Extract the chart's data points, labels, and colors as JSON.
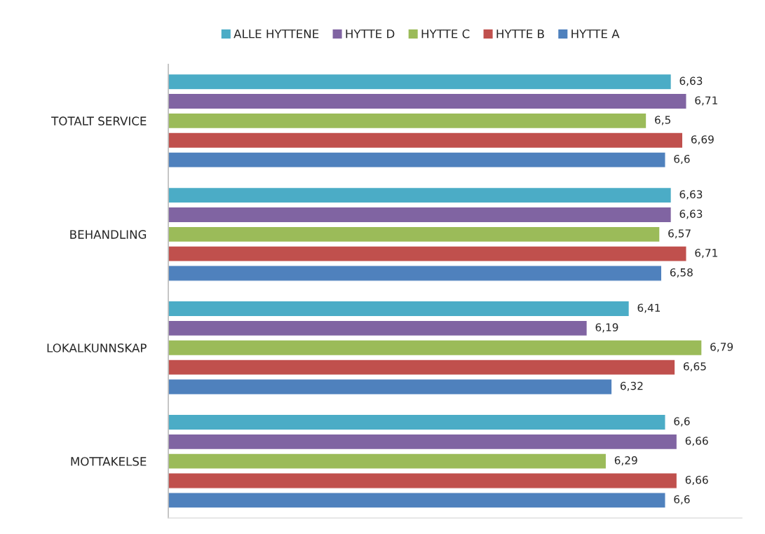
{
  "chart_data": {
    "type": "bar",
    "orientation": "horizontal",
    "categories": [
      "TOTALT SERVICE",
      "BEHANDLING",
      "LOKALKUNNSKAP",
      "MOTTAKELSE"
    ],
    "series": [
      {
        "name": "ALLE HYTTENE",
        "color": "#4bacc6",
        "values": [
          6.63,
          6.63,
          6.41,
          6.6
        ],
        "value_labels": [
          "6,63",
          "6,63",
          "6,41",
          "6,6"
        ]
      },
      {
        "name": "HYTTE D",
        "color": "#8064a2",
        "values": [
          6.71,
          6.63,
          6.19,
          6.66
        ],
        "value_labels": [
          "6,71",
          "6,63",
          "6,19",
          "6,66"
        ]
      },
      {
        "name": "HYTTE C",
        "color": "#9bbb59",
        "values": [
          6.5,
          6.57,
          6.79,
          6.29
        ],
        "value_labels": [
          "6,5",
          "6,57",
          "6,79",
          "6,29"
        ]
      },
      {
        "name": "HYTTE B",
        "color": "#c0504d",
        "values": [
          6.69,
          6.71,
          6.65,
          6.66
        ],
        "value_labels": [
          "6,69",
          "6,71",
          "6,65",
          "6,66"
        ]
      },
      {
        "name": "HYTTE A",
        "color": "#4f81bd",
        "values": [
          6.6,
          6.58,
          6.32,
          6.6
        ],
        "value_labels": [
          "6,6",
          "6,58",
          "6,32",
          "6,6"
        ]
      }
    ],
    "xlim": [
      4,
      7
    ],
    "tick_labels": "y",
    "legend": "top",
    "grid": false
  }
}
